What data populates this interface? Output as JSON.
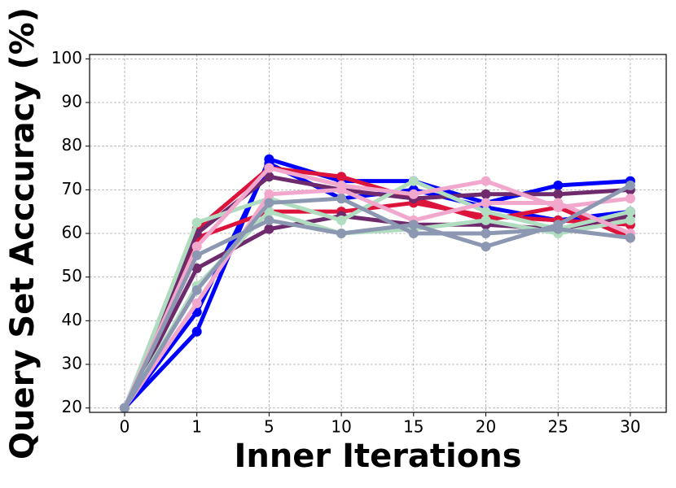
{
  "chart_data": {
    "type": "line",
    "xlabel": "Inner Iterations",
    "ylabel": "Query Set Acccuracy (%)",
    "categories": [
      "0",
      "1",
      "5",
      "10",
      "15",
      "20",
      "25",
      "30"
    ],
    "ylim": [
      19,
      101
    ],
    "yticks": [
      20,
      30,
      40,
      50,
      60,
      70,
      80,
      90,
      100
    ],
    "grid": true,
    "series": [
      {
        "color": "#0000ff",
        "values": [
          20,
          37.5,
          77,
          72,
          72,
          67,
          71,
          72
        ]
      },
      {
        "color": "#0000ff",
        "values": [
          20,
          42,
          76,
          68,
          70,
          66,
          63,
          65
        ]
      },
      {
        "color": "#dc143c",
        "values": [
          20,
          61,
          75,
          73,
          68,
          63,
          66,
          59
        ]
      },
      {
        "color": "#dc143c",
        "values": [
          20,
          59,
          65,
          65,
          67,
          64,
          63,
          62
        ]
      },
      {
        "color": "#6e2a6c",
        "values": [
          20,
          60,
          73,
          70,
          68,
          69,
          69,
          70
        ]
      },
      {
        "color": "#6e2a6c",
        "values": [
          20,
          52,
          61,
          64,
          62,
          62,
          61,
          64
        ]
      },
      {
        "color": "#b0dcc0",
        "values": [
          20,
          62.5,
          68,
          63,
          72,
          65,
          61,
          65
        ]
      },
      {
        "color": "#b0dcc0",
        "values": [
          20,
          48,
          65,
          60,
          61,
          63,
          60,
          63
        ]
      },
      {
        "color": "#f2a7cc",
        "values": [
          20,
          57,
          75,
          71,
          69,
          72,
          66,
          68
        ]
      },
      {
        "color": "#f2a7cc",
        "values": [
          20,
          44,
          69,
          70,
          63,
          67,
          67,
          60
        ]
      },
      {
        "color": "#8c98b2",
        "values": [
          20,
          55,
          63,
          60,
          62,
          57,
          62,
          71
        ]
      },
      {
        "color": "#8c98b2",
        "values": [
          20,
          47,
          67,
          68,
          60,
          60,
          61,
          59
        ]
      }
    ]
  }
}
